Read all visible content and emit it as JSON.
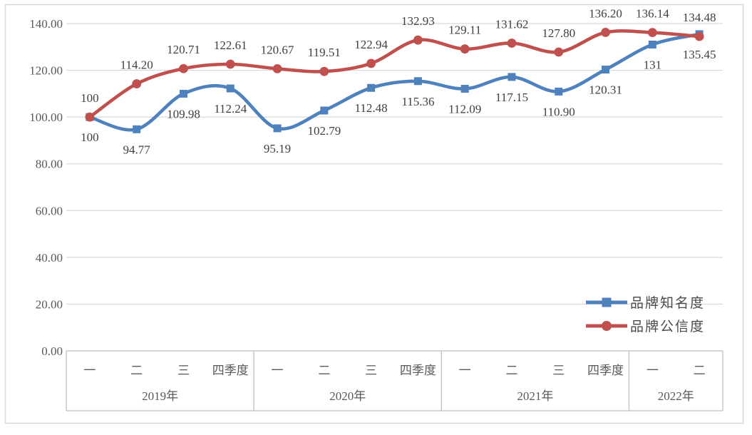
{
  "chart_data": {
    "type": "line",
    "title": "",
    "grid": true,
    "legend_position": "right-lower-inside",
    "x_axis": {
      "quarter_labels": [
        "一",
        "二",
        "三",
        "四季度",
        "一",
        "二",
        "三",
        "四季度",
        "一",
        "二",
        "三",
        "四季度",
        "一",
        "二"
      ],
      "year_groups": [
        {
          "label": "2019年",
          "span": 4
        },
        {
          "label": "2020年",
          "span": 4
        },
        {
          "label": "2021年",
          "span": 4
        },
        {
          "label": "2022年",
          "span": 2
        }
      ]
    },
    "y_axis": {
      "min": 0,
      "max": 140,
      "step": 20,
      "tick_labels": [
        "0.00",
        "20.00",
        "40.00",
        "60.00",
        "80.00",
        "100.00",
        "120.00",
        "140.00"
      ]
    },
    "series": [
      {
        "name": "品牌知名度",
        "color": "#4f81bd",
        "marker": "square",
        "label_position": "below",
        "values": [
          100.0,
          94.77,
          109.98,
          112.24,
          95.19,
          102.79,
          112.48,
          115.36,
          112.09,
          117.15,
          110.9,
          120.31,
          131.0,
          135.45
        ]
      },
      {
        "name": "品牌公信度",
        "color": "#c0504d",
        "marker": "circle",
        "label_position": "above",
        "values": [
          100.0,
          114.2,
          120.71,
          122.61,
          120.67,
          119.51,
          122.94,
          132.93,
          129.11,
          131.62,
          127.8,
          136.2,
          136.14,
          134.48
        ]
      }
    ]
  },
  "colors": {
    "series_blue": "#4f81bd",
    "series_red": "#c0504d",
    "gridline": "#d9d9d9",
    "axis_line": "#bfbfbf",
    "chart_border": "#d9d9d9",
    "axis_text": "#595959",
    "data_label_text": "#3f3f3f",
    "legend_text": "#4a4a4a",
    "background": "#ffffff"
  }
}
